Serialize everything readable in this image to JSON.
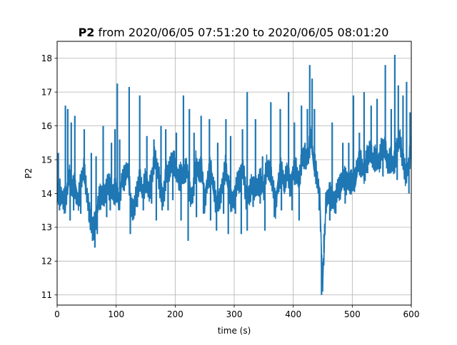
{
  "chart_data": {
    "type": "line",
    "title_bold": "P2",
    "title_rest": " from 2020/06/05 07:51:20 to 2020/06/05 08:01:20",
    "xlabel": "time (s)",
    "ylabel": "P2",
    "xlim": [
      0,
      600
    ],
    "ylim": [
      10.7,
      18.5
    ],
    "xticks": [
      0,
      100,
      200,
      300,
      400,
      500,
      600
    ],
    "yticks": [
      11,
      12,
      13,
      14,
      15,
      16,
      17,
      18
    ],
    "grid": true,
    "color": "#1f77b4",
    "series": [
      {
        "x": [
          0,
          5,
          10,
          15,
          20,
          25,
          30,
          35,
          40,
          45,
          50,
          55,
          60,
          65,
          70,
          75,
          80,
          85,
          90,
          95,
          100,
          105,
          110,
          115,
          120,
          125,
          130,
          135,
          140,
          145,
          150,
          155,
          160,
          165,
          170,
          175,
          180,
          185,
          190,
          195,
          200,
          205,
          210,
          215,
          220,
          225,
          230,
          235,
          240,
          245,
          250,
          255,
          260,
          265,
          270,
          275,
          280,
          285,
          290,
          295,
          300,
          305,
          310,
          315,
          320,
          325,
          330,
          335,
          340,
          345,
          350,
          355,
          360,
          365,
          370,
          375,
          380,
          385,
          390,
          395,
          400,
          405,
          410,
          415,
          420,
          425,
          430,
          435,
          440,
          445,
          448,
          450,
          455,
          460,
          465,
          470,
          475,
          480,
          485,
          490,
          495,
          500,
          505,
          510,
          515,
          520,
          525,
          530,
          535,
          540,
          545,
          550,
          555,
          560,
          565,
          570,
          575,
          580,
          585,
          590,
          595,
          600
        ],
        "y": [
          13.9,
          14.2,
          14.0,
          13.8,
          14.3,
          14.1,
          14.4,
          13.9,
          14.2,
          14.5,
          14.0,
          13.6,
          13.1,
          13.0,
          13.6,
          13.9,
          14.2,
          14.4,
          14.0,
          13.8,
          14.1,
          14.0,
          14.5,
          14.3,
          14.6,
          13.7,
          13.8,
          14.1,
          14.2,
          13.9,
          14.5,
          14.3,
          14.4,
          14.8,
          14.6,
          14.3,
          14.1,
          14.6,
          14.4,
          14.9,
          15.0,
          14.6,
          14.5,
          14.3,
          14.7,
          14.2,
          14.1,
          14.8,
          14.4,
          14.7,
          14.0,
          14.5,
          14.6,
          14.0,
          13.6,
          14.1,
          14.3,
          14.6,
          14.1,
          13.8,
          14.1,
          14.4,
          14.2,
          14.6,
          14.0,
          14.2,
          14.3,
          13.9,
          14.1,
          14.5,
          14.3,
          14.8,
          14.4,
          14.2,
          13.8,
          14.5,
          14.7,
          14.0,
          14.6,
          14.4,
          14.8,
          14.6,
          14.1,
          15.0,
          15.3,
          15.2,
          15.6,
          14.7,
          14.5,
          14.1,
          12.2,
          11.4,
          13.5,
          13.8,
          13.9,
          14.0,
          14.2,
          14.0,
          14.3,
          14.4,
          14.6,
          14.4,
          14.2,
          14.8,
          15.0,
          14.8,
          15.1,
          15.0,
          14.9,
          15.2,
          15.1,
          15.3,
          15.1,
          14.8,
          15.2,
          15.0,
          15.2,
          15.4,
          15.0,
          14.8,
          14.9,
          15.3
        ]
      },
      {
        "x": [
          2,
          14,
          18,
          24,
          30,
          46,
          58,
          66,
          78,
          92,
          98,
          102,
          106,
          122,
          140,
          152,
          164,
          176,
          184,
          202,
          214,
          224,
          232,
          244,
          258,
          272,
          286,
          294,
          314,
          322,
          336,
          348,
          362,
          378,
          392,
          402,
          414,
          420,
          424,
          428,
          432,
          436,
          466,
          484,
          494,
          502,
          512,
          520,
          532,
          542,
          556,
          566,
          572,
          578,
          586,
          592,
          598
        ],
        "y": [
          15.2,
          16.6,
          16.5,
          16.1,
          16.3,
          15.9,
          15.2,
          15.1,
          16.0,
          15.5,
          15.9,
          17.25,
          15.6,
          17.15,
          16.9,
          15.7,
          15.6,
          16.0,
          15.9,
          15.8,
          16.9,
          16.5,
          15.8,
          16.3,
          16.2,
          15.5,
          16.2,
          15.7,
          15.9,
          17.0,
          16.2,
          15.1,
          16.7,
          16.5,
          17.0,
          16.1,
          16.6,
          15.5,
          16.5,
          17.8,
          17.4,
          16.5,
          16.1,
          15.5,
          15.5,
          16.9,
          15.8,
          17.0,
          16.6,
          16.8,
          17.8,
          16.5,
          18.1,
          17.2,
          16.9,
          17.3,
          16.4
        ]
      },
      {
        "x": [
          4,
          12,
          22,
          28,
          40,
          54,
          60,
          64,
          68,
          84,
          90,
          104,
          124,
          128,
          136,
          146,
          160,
          168,
          178,
          188,
          196,
          210,
          222,
          236,
          248,
          260,
          270,
          282,
          290,
          302,
          312,
          322,
          332,
          344,
          352,
          368,
          380,
          398,
          410,
          444,
          448,
          452,
          462,
          472,
          488,
          498,
          526,
          552,
          576,
          596
        ],
        "y": [
          13.5,
          13.7,
          13.2,
          13.5,
          13.4,
          13.2,
          12.6,
          12.4,
          12.8,
          13.3,
          13.5,
          13.7,
          12.8,
          13.2,
          13.6,
          13.5,
          13.7,
          13.2,
          13.5,
          13.5,
          13.8,
          13.2,
          12.6,
          13.3,
          13.4,
          13.2,
          12.9,
          13.4,
          12.8,
          13.4,
          12.8,
          12.9,
          13.6,
          13.7,
          12.9,
          13.3,
          13.5,
          13.5,
          13.2,
          13.5,
          11.0,
          12.8,
          13.2,
          13.4,
          13.7,
          14.0,
          14.6,
          14.5,
          14.4,
          14.0
        ]
      }
    ]
  }
}
